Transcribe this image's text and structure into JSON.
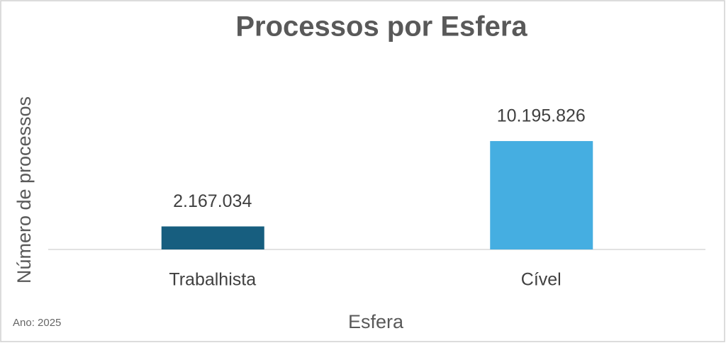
{
  "chart_data": {
    "type": "bar",
    "title": "Processos por Esfera",
    "x_label": "Esfera",
    "y_label": "Número de processos",
    "note": "Ano: 2025",
    "categories": [
      "Trabalhista",
      "Cível"
    ],
    "values": [
      2167034,
      10195826
    ],
    "value_labels": [
      "2.167.034",
      "10.195.826"
    ],
    "colors": [
      "#175e7f",
      "#45aee1"
    ],
    "ylim": [
      0,
      12000000
    ]
  }
}
